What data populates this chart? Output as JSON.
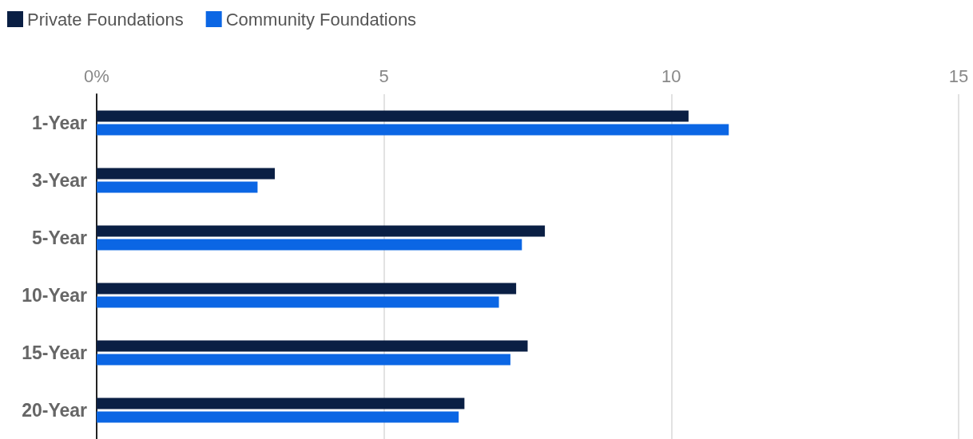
{
  "chart_data": {
    "type": "bar",
    "orientation": "horizontal",
    "categories": [
      "1-Year",
      "3-Year",
      "5-Year",
      "10-Year",
      "15-Year",
      "20-Year"
    ],
    "series": [
      {
        "name": "Private Foundations",
        "color": "#0a1f44",
        "values": [
          10.3,
          3.1,
          7.8,
          7.3,
          7.5,
          6.4
        ]
      },
      {
        "name": "Community Foundations",
        "color": "#0b66e4",
        "values": [
          11.0,
          2.8,
          7.4,
          7.0,
          7.2,
          6.3
        ]
      }
    ],
    "xlim": [
      0,
      15
    ],
    "xticks": [
      {
        "value": 0,
        "label": "0%"
      },
      5,
      10,
      15
    ],
    "grid": "x",
    "legend": "top left"
  }
}
